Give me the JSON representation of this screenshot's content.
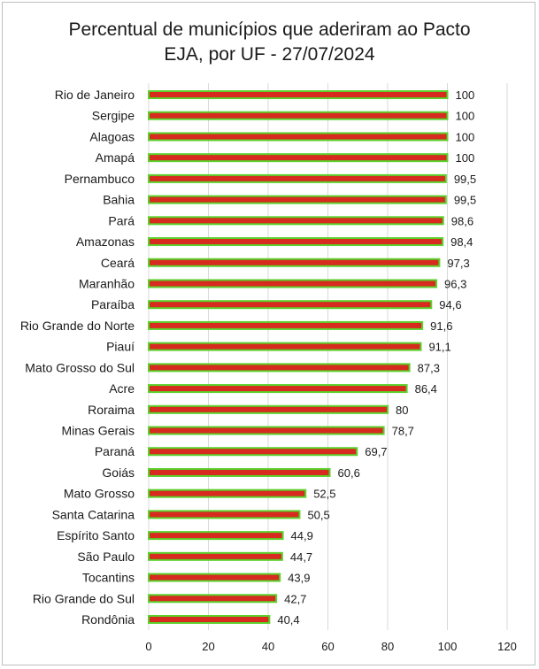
{
  "chart_data": {
    "type": "bar",
    "orientation": "horizontal",
    "title_line1": "Percentual de municípios que aderiram ao Pacto",
    "title_line2": "EJA, por UF - 27/07/2024",
    "categories": [
      "Rio de Janeiro",
      "Sergipe",
      "Alagoas",
      "Amapá",
      "Pernambuco",
      "Bahia",
      "Pará",
      "Amazonas",
      "Ceará",
      "Maranhão",
      "Paraíba",
      "Rio Grande do Norte",
      "Piauí",
      "Mato Grosso do Sul",
      "Acre",
      "Roraima",
      "Minas Gerais",
      "Paraná",
      "Goiás",
      "Mato Grosso",
      "Santa Catarina",
      "Espírito Santo",
      "São Paulo",
      "Tocantins",
      "Rio Grande do Sul",
      "Rondônia"
    ],
    "values": [
      100,
      100,
      100,
      100,
      99.5,
      99.5,
      98.6,
      98.4,
      97.3,
      96.3,
      94.6,
      91.6,
      91.1,
      87.3,
      86.4,
      80,
      78.7,
      69.7,
      60.6,
      52.5,
      50.5,
      44.9,
      44.7,
      43.9,
      42.7,
      40.4
    ],
    "value_labels": [
      "100",
      "100",
      "100",
      "100",
      "99,5",
      "99,5",
      "98,6",
      "98,4",
      "97,3",
      "96,3",
      "94,6",
      "91,6",
      "91,1",
      "87,3",
      "86,4",
      "80",
      "78,7",
      "69,7",
      "60,6",
      "52,5",
      "50,5",
      "44,9",
      "44,7",
      "43,9",
      "42,7",
      "40,4"
    ],
    "xlim": [
      0,
      120
    ],
    "xticks": [
      0,
      20,
      40,
      60,
      80,
      100,
      120
    ],
    "grid": true,
    "bar_fill": "#d62b1e",
    "bar_border": "#5cd12c",
    "grid_color": "#d9d9d9"
  }
}
